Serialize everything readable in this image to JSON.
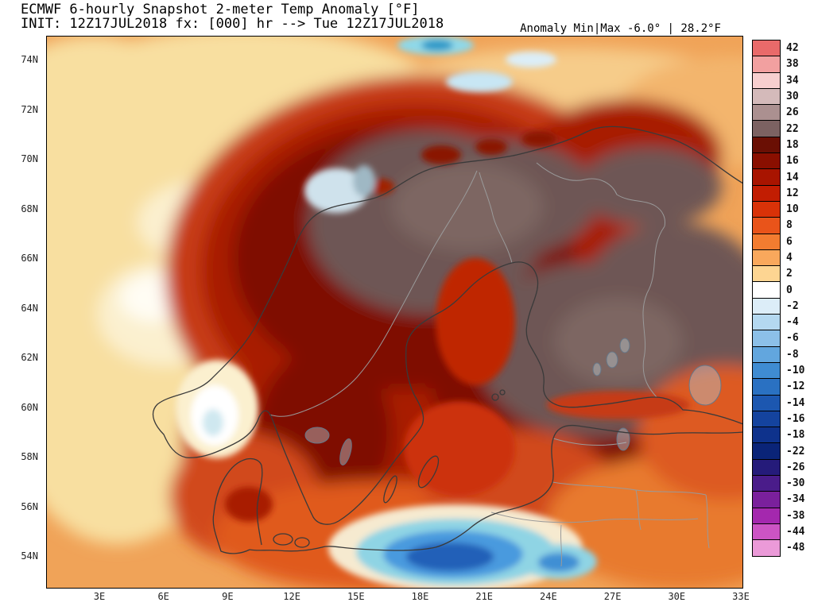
{
  "header": {
    "title_line1": "ECMWF 6-hourly Snapshot 2-meter Temp Anomaly [°F]",
    "title_line2": "INIT: 12Z17JUL2018 fx: [000] hr --> Tue 12Z17JUL2018",
    "anomaly_minmax": "Anomaly Min|Max -6.0° | 28.2°F"
  },
  "map": {
    "lat_ticks": [
      "74N",
      "72N",
      "70N",
      "68N",
      "66N",
      "64N",
      "62N",
      "60N",
      "58N",
      "56N",
      "54N"
    ],
    "lon_ticks": [
      "3E",
      "6E",
      "9E",
      "12E",
      "15E",
      "18E",
      "21E",
      "24E",
      "27E",
      "30E",
      "33E"
    ]
  },
  "colorbar": {
    "entries": [
      {
        "label": "42",
        "color": "#e96a6a"
      },
      {
        "label": "38",
        "color": "#f2a0a0"
      },
      {
        "label": "34",
        "color": "#f7cfcf"
      },
      {
        "label": "30",
        "color": "#d4baba"
      },
      {
        "label": "26",
        "color": "#ab9090"
      },
      {
        "label": "22",
        "color": "#7c6262"
      },
      {
        "label": "18",
        "color": "#6a0f04"
      },
      {
        "label": "16",
        "color": "#8a0f00"
      },
      {
        "label": "14",
        "color": "#a81400"
      },
      {
        "label": "12",
        "color": "#c21d02"
      },
      {
        "label": "10",
        "color": "#d93208"
      },
      {
        "label": "8",
        "color": "#e9541a"
      },
      {
        "label": "6",
        "color": "#f37c30"
      },
      {
        "label": "4",
        "color": "#f9a85c"
      },
      {
        "label": "2",
        "color": "#fdd592"
      },
      {
        "label": "0",
        "color": "#ffffff"
      },
      {
        "label": "-2",
        "color": "#dcedf8"
      },
      {
        "label": "-4",
        "color": "#b4d8f0"
      },
      {
        "label": "-6",
        "color": "#8cc0e8"
      },
      {
        "label": "-8",
        "color": "#62a6de"
      },
      {
        "label": "-10",
        "color": "#3f8cd2"
      },
      {
        "label": "-12",
        "color": "#2a71c2"
      },
      {
        "label": "-14",
        "color": "#1c57b0"
      },
      {
        "label": "-16",
        "color": "#14439e"
      },
      {
        "label": "-18",
        "color": "#0e328c"
      },
      {
        "label": "-22",
        "color": "#0a2478"
      },
      {
        "label": "-26",
        "color": "#251b7a"
      },
      {
        "label": "-30",
        "color": "#4a1c8a"
      },
      {
        "label": "-34",
        "color": "#7a209c"
      },
      {
        "label": "-38",
        "color": "#a428ae"
      },
      {
        "label": "-44",
        "color": "#cc54c4"
      },
      {
        "label": "-48",
        "color": "#eb9ad8"
      }
    ]
  },
  "chart_data": {
    "type": "heatmap",
    "title": "ECMWF 6-hourly Snapshot 2-meter Temp Anomaly [°F]",
    "init": "12Z17JUL2018",
    "forecast_hour": "000",
    "valid": "Tue 12Z17JUL2018",
    "anomaly_min_f": -6.0,
    "anomaly_max_f": 28.2,
    "colorbar_values_f": [
      42,
      38,
      34,
      30,
      26,
      22,
      18,
      16,
      14,
      12,
      10,
      8,
      6,
      4,
      2,
      0,
      -2,
      -4,
      -6,
      -8,
      -10,
      -12,
      -14,
      -16,
      -18,
      -22,
      -26,
      -30,
      -34,
      -38,
      -44,
      -48
    ],
    "lat_ticks": [
      "74N",
      "72N",
      "70N",
      "68N",
      "66N",
      "64N",
      "62N",
      "60N",
      "58N",
      "56N",
      "54N"
    ],
    "lon_ticks": [
      "3E",
      "6E",
      "9E",
      "12E",
      "15E",
      "18E",
      "21E",
      "24E",
      "27E",
      "30E",
      "33E"
    ]
  }
}
